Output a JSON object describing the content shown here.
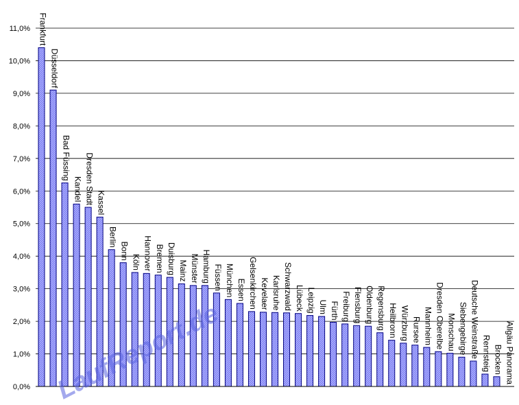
{
  "chart_data": {
    "type": "bar",
    "title": "",
    "xlabel": "",
    "ylabel": "",
    "ylim": [
      0,
      11
    ],
    "y_ticks": [
      "0,0%",
      "1,0%",
      "2,0%",
      "3,0%",
      "4,0%",
      "5,0%",
      "6,0%",
      "7,0%",
      "8,0%",
      "9,0%",
      "10,0%",
      "11,0%"
    ],
    "grid": "horizontal",
    "legend": "none",
    "bar_color": "#7b7ef2",
    "bar_border_color": "#000080",
    "categories": [
      "Frankfurt",
      "Düsseldorf",
      "Bad Füssing",
      "Kandel",
      "Dresden Stadt",
      "Kassel",
      "Berlin",
      "Bonn",
      "Köln",
      "Hannover",
      "Bremen",
      "Duisburg",
      "Mainz",
      "Münster",
      "Hamburg",
      "Füssen",
      "München",
      "Essen",
      "Gelsenkirchen",
      "Kevelaer",
      "Karlsruhe",
      "Schwarzwald",
      "Lübeck",
      "Leipzig",
      "Ulm",
      "Fürth",
      "Freiburg",
      "Flensburg",
      "Oldenburg",
      "Regensburg",
      "Heilbronn",
      "Würzburg",
      "Rursee",
      "Mannheim",
      "Dresden Oberelbe",
      "Monschau",
      "Siebengebirge",
      "Deutsche Weinstraße",
      "Rennsteig",
      "Brocken",
      "Allgäu Panorama"
    ],
    "values": [
      10.4,
      9.1,
      6.25,
      5.6,
      5.5,
      5.2,
      4.2,
      3.8,
      3.5,
      3.47,
      3.42,
      3.35,
      3.15,
      3.1,
      3.1,
      2.87,
      2.67,
      2.55,
      2.3,
      2.28,
      2.27,
      2.26,
      2.24,
      2.18,
      2.15,
      1.97,
      1.92,
      1.87,
      1.85,
      1.65,
      1.42,
      1.33,
      1.27,
      1.2,
      1.07,
      1.02,
      0.9,
      0.78,
      0.38,
      0.3,
      0.0
    ]
  },
  "watermark": "LaufReport.de"
}
